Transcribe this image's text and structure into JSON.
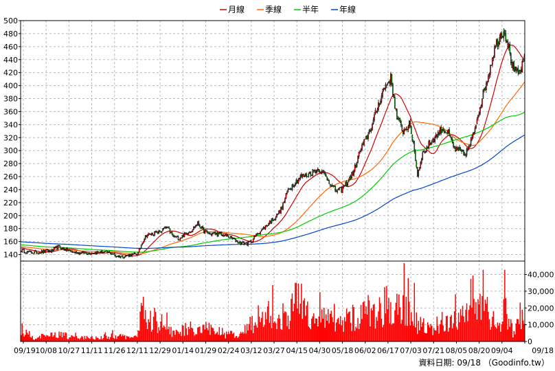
{
  "chart_data": {
    "type": "candlestick",
    "legend": [
      {
        "label": "月線",
        "color": "#cc0000"
      },
      {
        "label": "季線",
        "color": "#ff6600"
      },
      {
        "label": "半年",
        "color": "#00cc00"
      },
      {
        "label": "年線",
        "color": "#0044cc"
      }
    ],
    "x_tick_labels": [
      "09/19",
      "10/08",
      "10/27",
      "11/11",
      "11/26",
      "12/11",
      "12/29",
      "01/14",
      "01/29",
      "02/24",
      "03/12",
      "03/27",
      "04/15",
      "04/30",
      "05/18",
      "06/02",
      "06/17",
      "07/03",
      "07/21",
      "08/05",
      "08/20",
      "09/04",
      "09/18"
    ],
    "price_axis": {
      "ylim": [
        130,
        500
      ],
      "ticks": [
        140,
        160,
        180,
        200,
        220,
        240,
        260,
        280,
        300,
        320,
        340,
        360,
        380,
        400,
        420,
        440,
        460,
        480,
        500
      ]
    },
    "volume_axis": {
      "ylim": [
        0,
        48000
      ],
      "ticks": [
        0,
        10000,
        20000,
        30000,
        40000
      ],
      "tick_labels": [
        "0",
        "10,000",
        "20,000",
        "30,000",
        "40,000"
      ]
    },
    "price_anchors": [
      [
        0,
        147
      ],
      [
        6,
        144
      ],
      [
        12,
        143
      ],
      [
        18,
        144
      ],
      [
        24,
        145
      ],
      [
        30,
        146
      ],
      [
        36,
        152
      ],
      [
        44,
        147
      ],
      [
        50,
        144
      ],
      [
        56,
        143
      ],
      [
        64,
        142
      ],
      [
        72,
        143
      ],
      [
        80,
        144
      ],
      [
        88,
        142
      ],
      [
        92,
        138
      ],
      [
        98,
        137
      ],
      [
        104,
        139
      ],
      [
        110,
        140
      ],
      [
        114,
        142
      ],
      [
        118,
        160
      ],
      [
        122,
        170
      ],
      [
        128,
        172
      ],
      [
        134,
        174
      ],
      [
        142,
        182
      ],
      [
        148,
        168
      ],
      [
        154,
        165
      ],
      [
        160,
        172
      ],
      [
        166,
        178
      ],
      [
        172,
        188
      ],
      [
        178,
        176
      ],
      [
        184,
        172
      ],
      [
        190,
        172
      ],
      [
        196,
        170
      ],
      [
        202,
        168
      ],
      [
        208,
        162
      ],
      [
        214,
        158
      ],
      [
        220,
        157
      ],
      [
        224,
        160
      ],
      [
        230,
        172
      ],
      [
        236,
        180
      ],
      [
        242,
        190
      ],
      [
        248,
        198
      ],
      [
        254,
        212
      ],
      [
        260,
        240
      ],
      [
        266,
        250
      ],
      [
        272,
        260
      ],
      [
        278,
        262
      ],
      [
        284,
        268
      ],
      [
        290,
        272
      ],
      [
        296,
        262
      ],
      [
        302,
        248
      ],
      [
        306,
        238
      ],
      [
        312,
        240
      ],
      [
        318,
        252
      ],
      [
        324,
        268
      ],
      [
        330,
        300
      ],
      [
        336,
        318
      ],
      [
        342,
        340
      ],
      [
        348,
        372
      ],
      [
        354,
        398
      ],
      [
        360,
        412
      ],
      [
        366,
        350
      ],
      [
        372,
        330
      ],
      [
        378,
        340
      ],
      [
        382,
        312
      ],
      [
        386,
        262
      ],
      [
        390,
        292
      ],
      [
        394,
        302
      ],
      [
        398,
        312
      ],
      [
        404,
        322
      ],
      [
        410,
        334
      ],
      [
        416,
        326
      ],
      [
        422,
        302
      ],
      [
        428,
        298
      ],
      [
        432,
        294
      ],
      [
        436,
        304
      ],
      [
        440,
        322
      ],
      [
        444,
        350
      ],
      [
        448,
        376
      ],
      [
        454,
        410
      ],
      [
        458,
        438
      ],
      [
        462,
        462
      ],
      [
        466,
        476
      ],
      [
        470,
        486
      ],
      [
        474,
        466
      ],
      [
        478,
        432
      ],
      [
        482,
        418
      ],
      [
        486,
        422
      ],
      [
        490,
        438
      ]
    ],
    "volume_anchors": [
      [
        0,
        8000
      ],
      [
        12,
        2500
      ],
      [
        24,
        3500
      ],
      [
        36,
        5000
      ],
      [
        50,
        2500
      ],
      [
        70,
        2500
      ],
      [
        90,
        3500
      ],
      [
        110,
        2500
      ],
      [
        115,
        8000
      ],
      [
        118,
        22000
      ],
      [
        124,
        14000
      ],
      [
        130,
        15000
      ],
      [
        136,
        12000
      ],
      [
        144,
        10000
      ],
      [
        150,
        5000
      ],
      [
        160,
        8000
      ],
      [
        166,
        10000
      ],
      [
        172,
        6000
      ],
      [
        180,
        9000
      ],
      [
        190,
        7000
      ],
      [
        200,
        5000
      ],
      [
        212,
        3500
      ],
      [
        222,
        10000
      ],
      [
        232,
        13000
      ],
      [
        242,
        18000
      ],
      [
        252,
        14000
      ],
      [
        262,
        20000
      ],
      [
        270,
        27000
      ],
      [
        278,
        20000
      ],
      [
        290,
        16000
      ],
      [
        298,
        18000
      ],
      [
        306,
        10000
      ],
      [
        316,
        14000
      ],
      [
        326,
        16000
      ],
      [
        336,
        20000
      ],
      [
        346,
        18000
      ],
      [
        356,
        26000
      ],
      [
        366,
        20000
      ],
      [
        376,
        25000
      ],
      [
        386,
        12000
      ],
      [
        396,
        8000
      ],
      [
        406,
        13000
      ],
      [
        416,
        11000
      ],
      [
        426,
        14000
      ],
      [
        436,
        17000
      ],
      [
        446,
        22000
      ],
      [
        456,
        20000
      ],
      [
        462,
        10000
      ],
      [
        466,
        9000
      ],
      [
        470,
        36000
      ],
      [
        474,
        14000
      ],
      [
        480,
        5500
      ],
      [
        486,
        16000
      ],
      [
        490,
        14000
      ]
    ],
    "footer": "資料日期: 09/18 （Goodinfo.tw）"
  }
}
